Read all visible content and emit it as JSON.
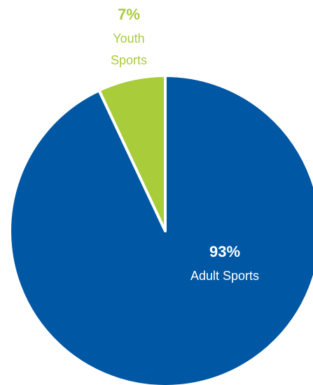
{
  "chart_data": {
    "type": "pie",
    "title": "",
    "slices": [
      {
        "name": "Adult Sports",
        "value": 93,
        "value_label": "93%",
        "label_lines": [
          "Adult Sports"
        ],
        "color": "#0057A4"
      },
      {
        "name": "Youth Sports",
        "value": 7,
        "value_label": "7%",
        "label_lines": [
          "Youth",
          "Sports"
        ],
        "color": "#A8CC3A"
      }
    ],
    "start_angle": "12 o'clock",
    "direction": "clockwise",
    "legend": "none",
    "slice_separator_color": "#ffffff"
  }
}
